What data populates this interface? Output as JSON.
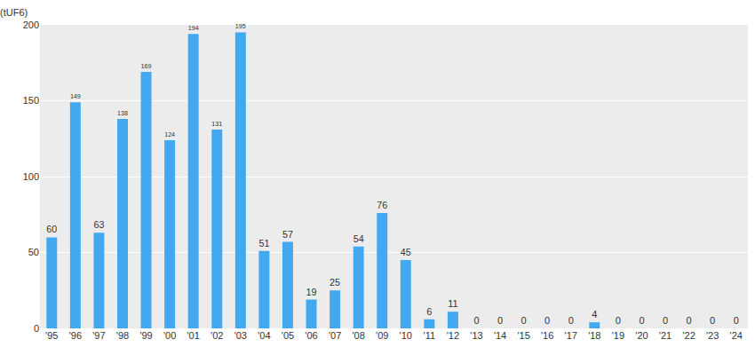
{
  "chart_data": {
    "type": "bar",
    "ylabel": "(tUF6)",
    "categories": [
      "'95",
      "'96",
      "'97",
      "'98",
      "'99",
      "'00",
      "'01",
      "'02",
      "'03",
      "'04",
      "'05",
      "'06",
      "'07",
      "'08",
      "'09",
      "'10",
      "'11",
      "'12",
      "'13",
      "'14",
      "'15",
      "'16",
      "'17",
      "'18",
      "'19",
      "'20",
      "'21",
      "'22",
      "'23",
      "'24"
    ],
    "values": [
      60,
      149,
      63,
      138,
      169,
      124,
      194,
      131,
      195,
      51,
      57,
      19,
      25,
      54,
      76,
      45,
      6,
      11,
      0,
      0,
      0,
      0,
      0,
      4,
      0,
      0,
      0,
      0,
      0,
      0
    ],
    "color": "#42a8ef",
    "ylim": [
      0,
      200
    ],
    "yticks": [
      0,
      50,
      100,
      150,
      200
    ],
    "grid": true,
    "data_labels": true
  }
}
